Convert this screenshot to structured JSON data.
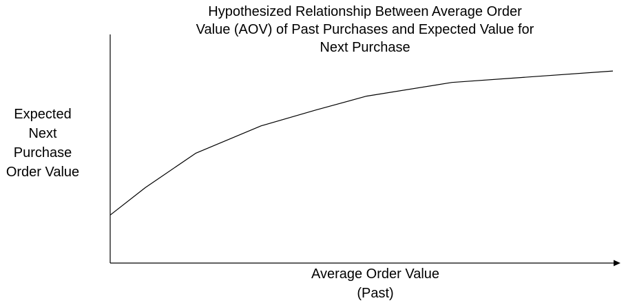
{
  "chart_data": {
    "type": "line",
    "title": "Hypothesized Relationship Between Average Order\nValue (AOV) of Past Purchases and Expected Value for\nNext Purchase",
    "xlabel": "Average Order Value\n(Past)",
    "ylabel": "Expected\nNext\nPurchase\nOrder Value",
    "axes": {
      "x_ticks": false,
      "y_ticks": false,
      "grid": false,
      "x_arrow": true
    },
    "xlim": [
      0,
      100
    ],
    "ylim": [
      0,
      100
    ],
    "series": [
      {
        "x": [
          0,
          7,
          17,
          30,
          41,
          51,
          68,
          100
        ],
        "y": [
          21,
          33,
          48,
          60,
          67,
          73,
          79,
          84
        ]
      }
    ],
    "colors": {
      "line": "#000000",
      "axis": "#000000"
    }
  }
}
